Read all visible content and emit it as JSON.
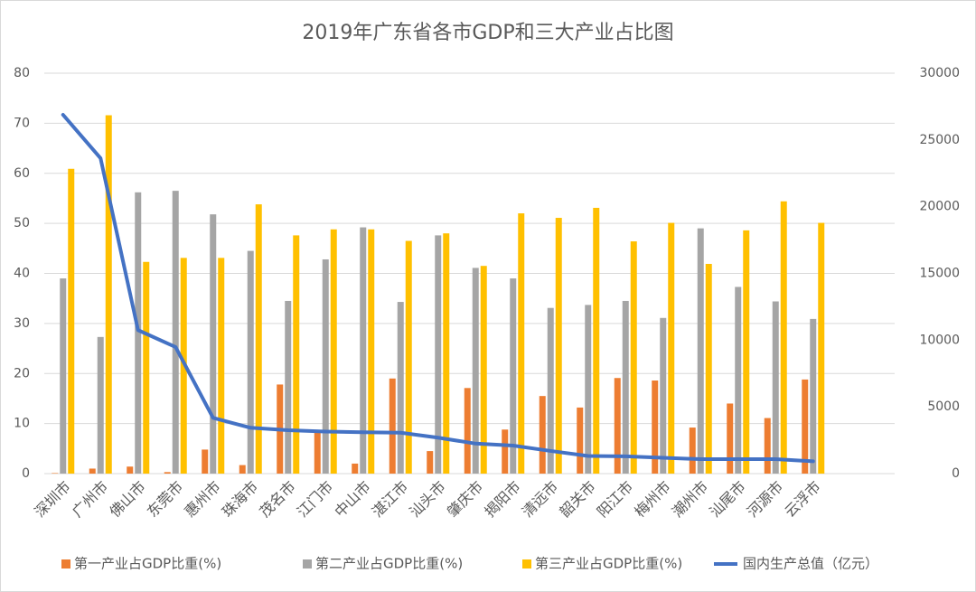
{
  "chart_data": {
    "type": "bar",
    "title": "2019年广东省各市GDP和三大产业占比图",
    "categories": [
      "深圳市",
      "广州市",
      "佛山市",
      "东莞市",
      "惠州市",
      "珠海市",
      "茂名市",
      "江门市",
      "中山市",
      "湛江市",
      "汕头市",
      "肇庆市",
      "揭阳市",
      "清远市",
      "韶关市",
      "阳江市",
      "梅州市",
      "潮州市",
      "汕尾市",
      "河源市",
      "云浮市"
    ],
    "series": [
      {
        "name": "第一产业占GDP比重(%)",
        "type": "bar",
        "color": "#ed7d31",
        "values": [
          0.1,
          1.0,
          1.4,
          0.3,
          4.8,
          1.7,
          17.8,
          8.4,
          2.0,
          19.0,
          4.5,
          17.1,
          8.8,
          15.5,
          13.2,
          19.1,
          18.6,
          9.2,
          14.0,
          11.1,
          18.8
        ]
      },
      {
        "name": "第二产业占GDP比重(%)",
        "type": "bar",
        "color": "#a5a5a5",
        "values": [
          39.0,
          27.3,
          56.2,
          56.5,
          51.8,
          44.5,
          34.5,
          42.8,
          49.2,
          34.3,
          47.6,
          41.1,
          39.0,
          33.1,
          33.7,
          34.5,
          31.1,
          49.0,
          37.3,
          34.4,
          30.9
        ]
      },
      {
        "name": "第三产业占GDP比重(%)",
        "type": "bar",
        "color": "#ffc000",
        "values": [
          60.9,
          71.6,
          42.3,
          43.1,
          43.1,
          53.8,
          47.6,
          48.8,
          48.8,
          46.5,
          48.0,
          41.5,
          52.0,
          51.1,
          53.1,
          46.4,
          50.1,
          41.9,
          48.6,
          54.4,
          50.1
        ]
      },
      {
        "name": "国内生产总值（亿元）",
        "type": "line",
        "axis": "y2",
        "color": "#4472c4",
        "values": [
          26885,
          23634,
          10751,
          9482,
          4177,
          3436,
          3253,
          3146,
          3101,
          3064,
          2694,
          2249,
          2102,
          1698,
          1318,
          1292,
          1187,
          1080,
          1080,
          1080,
          921
        ]
      }
    ],
    "ylim": [
      0,
      80
    ],
    "yticks": [
      0,
      10,
      20,
      30,
      40,
      50,
      60,
      70,
      80
    ],
    "y2lim": [
      0,
      30000
    ],
    "y2ticks": [
      0,
      5000,
      10000,
      15000,
      20000,
      25000,
      30000
    ],
    "grid": true,
    "legend": "bottom"
  }
}
